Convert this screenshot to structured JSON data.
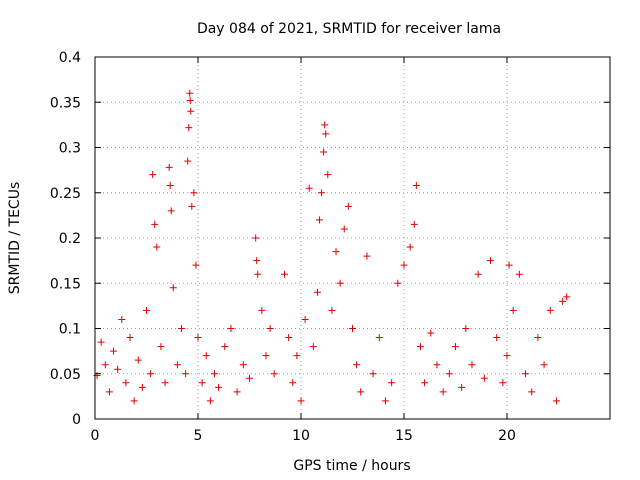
{
  "chart_data": {
    "type": "scatter",
    "title": "Day 084 of 2021, SRMTID for receiver lama",
    "xlabel": "GPS time / hours",
    "ylabel": "SRMTID / TECUs",
    "xlim": [
      0,
      25
    ],
    "ylim": [
      0,
      0.4
    ],
    "x_ticks": [
      0,
      5,
      10,
      15,
      20
    ],
    "x_tick_labels": [
      "0",
      "5",
      "10",
      "15",
      "20"
    ],
    "y_ticks": [
      0,
      0.05,
      0.1,
      0.15,
      0.2,
      0.25,
      0.3,
      0.35,
      0.4
    ],
    "y_tick_labels": [
      "0",
      "0.05",
      "0.1",
      "0.15",
      "0.2",
      "0.25",
      "0.3",
      "0.35",
      "0.4"
    ],
    "grid": true,
    "marker": "plus",
    "point_color": "#e00000",
    "series": [
      {
        "name": "SRMTID",
        "points": [
          [
            0.1,
            0.048
          ],
          [
            0.3,
            0.085
          ],
          [
            0.5,
            0.06
          ],
          [
            0.7,
            0.03
          ],
          [
            0.9,
            0.075
          ],
          [
            1.1,
            0.055
          ],
          [
            1.3,
            0.11
          ],
          [
            1.5,
            0.04
          ],
          [
            1.7,
            0.09
          ],
          [
            1.9,
            0.02
          ],
          [
            2.1,
            0.065
          ],
          [
            2.3,
            0.035
          ],
          [
            2.5,
            0.12
          ],
          [
            2.7,
            0.05
          ],
          [
            2.8,
            0.27
          ],
          [
            2.9,
            0.215
          ],
          [
            3.0,
            0.19
          ],
          [
            3.2,
            0.08
          ],
          [
            3.4,
            0.04
          ],
          [
            3.6,
            0.278
          ],
          [
            3.65,
            0.258
          ],
          [
            3.7,
            0.23
          ],
          [
            3.8,
            0.145
          ],
          [
            4.0,
            0.06
          ],
          [
            4.2,
            0.1
          ],
          [
            4.4,
            0.05
          ],
          [
            4.5,
            0.285
          ],
          [
            4.55,
            0.322
          ],
          [
            4.6,
            0.36
          ],
          [
            4.62,
            0.352
          ],
          [
            4.65,
            0.34
          ],
          [
            4.7,
            0.235
          ],
          [
            4.8,
            0.25
          ],
          [
            4.9,
            0.17
          ],
          [
            5.0,
            0.09
          ],
          [
            5.2,
            0.04
          ],
          [
            5.4,
            0.07
          ],
          [
            5.6,
            0.02
          ],
          [
            5.8,
            0.05
          ],
          [
            6.0,
            0.035
          ],
          [
            6.3,
            0.08
          ],
          [
            6.6,
            0.1
          ],
          [
            6.9,
            0.03
          ],
          [
            7.2,
            0.06
          ],
          [
            7.5,
            0.045
          ],
          [
            7.8,
            0.2
          ],
          [
            7.85,
            0.175
          ],
          [
            7.9,
            0.16
          ],
          [
            8.1,
            0.12
          ],
          [
            8.3,
            0.07
          ],
          [
            8.5,
            0.1
          ],
          [
            8.7,
            0.05
          ],
          [
            9.2,
            0.16
          ],
          [
            9.4,
            0.09
          ],
          [
            9.6,
            0.04
          ],
          [
            9.8,
            0.07
          ],
          [
            10.0,
            0.02
          ],
          [
            10.2,
            0.11
          ],
          [
            10.4,
            0.255
          ],
          [
            10.6,
            0.08
          ],
          [
            10.8,
            0.14
          ],
          [
            10.9,
            0.22
          ],
          [
            11.0,
            0.25
          ],
          [
            11.1,
            0.295
          ],
          [
            11.15,
            0.325
          ],
          [
            11.2,
            0.315
          ],
          [
            11.3,
            0.27
          ],
          [
            11.5,
            0.12
          ],
          [
            11.7,
            0.185
          ],
          [
            11.9,
            0.15
          ],
          [
            12.1,
            0.21
          ],
          [
            12.3,
            0.235
          ],
          [
            12.5,
            0.1
          ],
          [
            12.7,
            0.06
          ],
          [
            12.9,
            0.03
          ],
          [
            13.2,
            0.18
          ],
          [
            13.5,
            0.05
          ],
          [
            13.8,
            0.09
          ],
          [
            14.1,
            0.02
          ],
          [
            14.4,
            0.04
          ],
          [
            14.7,
            0.15
          ],
          [
            15.0,
            0.17
          ],
          [
            15.3,
            0.19
          ],
          [
            15.5,
            0.215
          ],
          [
            15.6,
            0.258
          ],
          [
            15.8,
            0.08
          ],
          [
            16.0,
            0.04
          ],
          [
            16.3,
            0.095
          ],
          [
            16.6,
            0.06
          ],
          [
            16.9,
            0.03
          ],
          [
            17.2,
            0.05
          ],
          [
            17.5,
            0.08
          ],
          [
            17.8,
            0.035
          ],
          [
            18.0,
            0.1
          ],
          [
            18.3,
            0.06
          ],
          [
            18.6,
            0.16
          ],
          [
            18.9,
            0.045
          ],
          [
            19.2,
            0.175
          ],
          [
            19.5,
            0.09
          ],
          [
            19.8,
            0.04
          ],
          [
            20.0,
            0.07
          ],
          [
            20.1,
            0.17
          ],
          [
            20.3,
            0.12
          ],
          [
            20.6,
            0.16
          ],
          [
            20.9,
            0.05
          ],
          [
            21.2,
            0.03
          ],
          [
            21.5,
            0.09
          ],
          [
            21.8,
            0.06
          ],
          [
            22.1,
            0.12
          ],
          [
            22.4,
            0.02
          ],
          [
            22.7,
            0.13
          ],
          [
            22.9,
            0.135
          ]
        ]
      }
    ]
  }
}
